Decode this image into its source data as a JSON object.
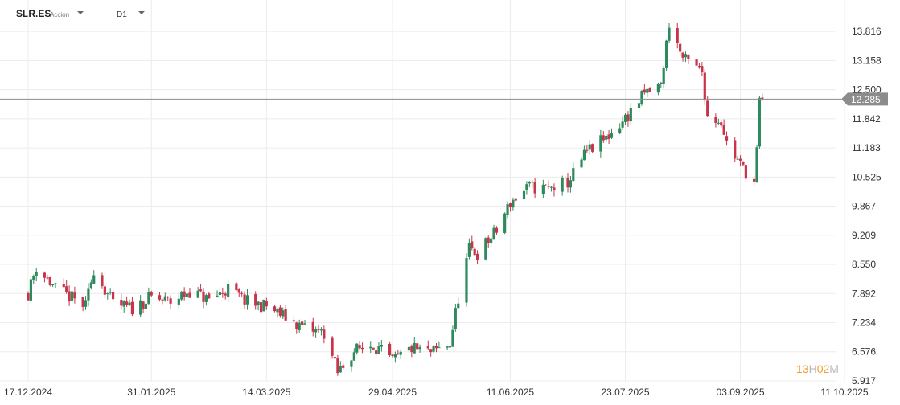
{
  "header": {
    "symbol": "SLR.ES",
    "instrument_type": "Acción",
    "timeframe": "D1"
  },
  "countdown": {
    "hours": "13",
    "hours_unit": "H",
    "minutes": "02",
    "minutes_unit": "M"
  },
  "colors": {
    "up": "#2e8a5c",
    "down": "#c9344a",
    "grid": "#ececec",
    "price_line": "#8c8c8c",
    "price_tag_bg": "#8c8c8c",
    "price_tag_text": "#ffffff",
    "axis_text": "#333333"
  },
  "chart_data": {
    "type": "candlestick",
    "ylim": [
      5.917,
      14.2
    ],
    "y_ticks": [
      "13.816",
      "13.158",
      "12.500",
      "11.842",
      "11.183",
      "10.525",
      "9.867",
      "9.209",
      "8.550",
      "7.892",
      "7.234",
      "6.576",
      "5.917"
    ],
    "x_tick_labels": [
      "17.12.2024",
      "31.01.2025",
      "14.03.2025",
      "29.04.2025",
      "11.06.2025",
      "23.07.2025",
      "03.09.2025",
      "11.10.2025"
    ],
    "current_price": "12.285",
    "close_path": [
      [
        "17.12.2024",
        7.9
      ],
      [
        "20.12.2024",
        8.5
      ],
      [
        "27.12.2024",
        8.0
      ],
      [
        "07.01.2025",
        7.6
      ],
      [
        "10.01.2025",
        8.45
      ],
      [
        "17.01.2025",
        7.65
      ],
      [
        "24.01.2025",
        7.55
      ],
      [
        "31.01.2025",
        7.8
      ],
      [
        "07.02.2025",
        7.7
      ],
      [
        "14.02.2025",
        7.95
      ],
      [
        "21.02.2025",
        7.75
      ],
      [
        "28.02.2025",
        8.0
      ],
      [
        "07.03.2025",
        7.7
      ],
      [
        "14.03.2025",
        7.6
      ],
      [
        "21.03.2025",
        7.35
      ],
      [
        "28.03.2025",
        7.1
      ],
      [
        "04.04.2025",
        7.0
      ],
      [
        "09.04.2025",
        6.1
      ],
      [
        "15.04.2025",
        6.6
      ],
      [
        "22.04.2025",
        6.75
      ],
      [
        "29.04.2025",
        6.35
      ],
      [
        "06.05.2025",
        6.65
      ],
      [
        "13.05.2025",
        6.55
      ],
      [
        "20.05.2025",
        6.75
      ],
      [
        "23.05.2025",
        7.8
      ],
      [
        "27.05.2025",
        8.9
      ],
      [
        "30.05.2025",
        8.8
      ],
      [
        "06.06.2025",
        9.3
      ],
      [
        "11.06.2025",
        9.95
      ],
      [
        "18.06.2025",
        10.3
      ],
      [
        "25.06.2025",
        10.25
      ],
      [
        "02.07.2025",
        10.4
      ],
      [
        "09.07.2025",
        11.1
      ],
      [
        "16.07.2025",
        11.4
      ],
      [
        "23.07.2025",
        11.85
      ],
      [
        "30.07.2025",
        12.4
      ],
      [
        "05.08.2025",
        12.6
      ],
      [
        "08.08.2025",
        14.0
      ],
      [
        "13.08.2025",
        13.2
      ],
      [
        "20.08.2025",
        12.9
      ],
      [
        "22.08.2025",
        11.9
      ],
      [
        "27.08.2025",
        11.8
      ],
      [
        "29.08.2025",
        11.3
      ],
      [
        "03.09.2025",
        10.8
      ],
      [
        "08.09.2025",
        10.4
      ],
      [
        "09.09.2025",
        11.1
      ],
      [
        "10.09.2025",
        12.2
      ],
      [
        "11.09.2025",
        12.285
      ]
    ]
  }
}
